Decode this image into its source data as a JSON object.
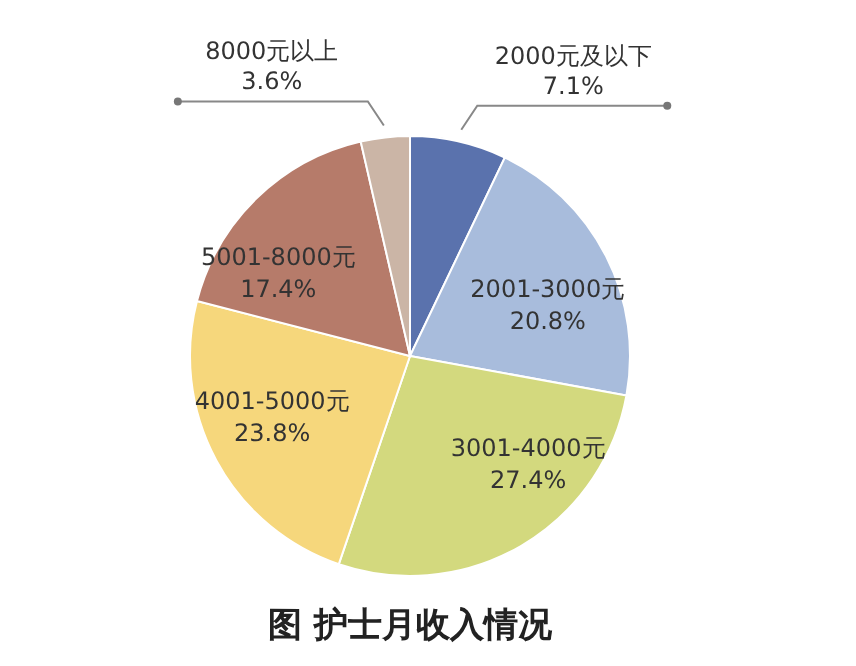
{
  "chart_data": {
    "type": "pie",
    "title": "图 护士月收入情况",
    "categories": [
      "2000元及以下",
      "2001-3000元",
      "3001-4000元",
      "4001-5000元",
      "5001-8000元",
      "8000元以上"
    ],
    "values": [
      7.1,
      20.8,
      27.4,
      23.8,
      17.4,
      3.6
    ],
    "value_labels": [
      "7.1%",
      "20.8%",
      "27.4%",
      "23.8%",
      "17.4%",
      "3.6%"
    ],
    "colors": [
      "#5a72ad",
      "#a8bcdc",
      "#d3d97e",
      "#f6d77c",
      "#b67b6a",
      "#cbb5a6"
    ],
    "legend": false
  }
}
